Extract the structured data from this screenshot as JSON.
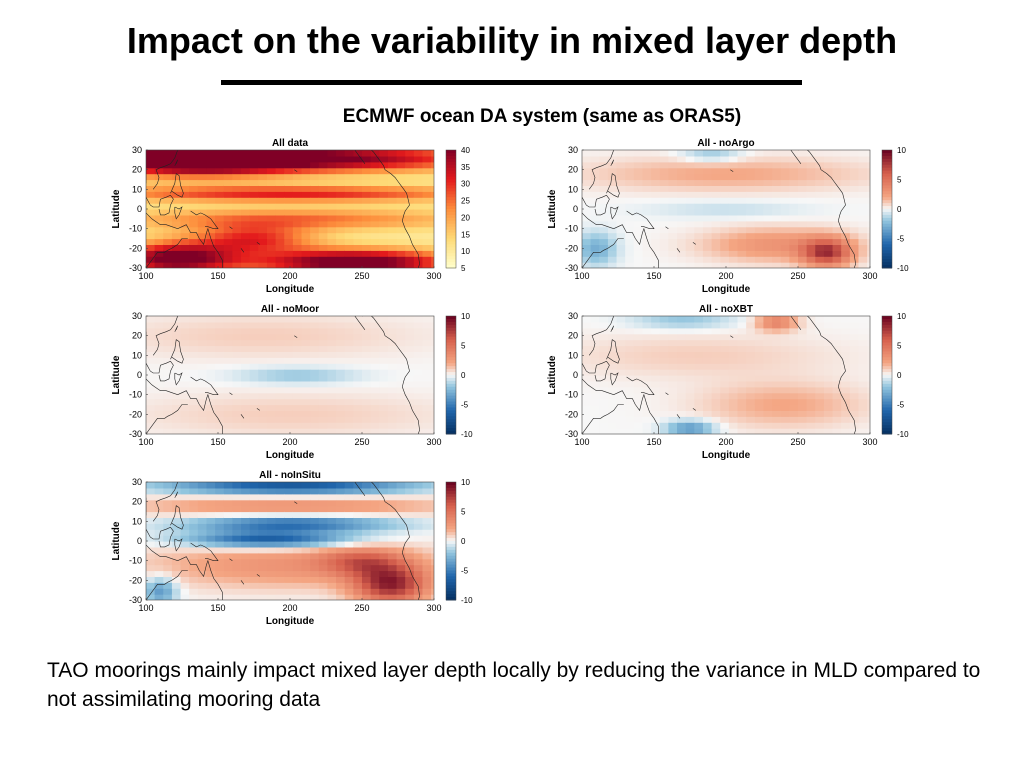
{
  "slide": {
    "title": "Impact on the variability in mixed layer depth",
    "subtitle": "ECMWF ocean DA system (same as ORAS5)",
    "caption": "TAO moorings mainly impact mixed layer depth locally by reducing the variance in MLD compared to not assimilating mooring data"
  },
  "chart_data": [
    {
      "type": "heatmap",
      "title": "All data",
      "xlabel": "Longitude",
      "ylabel": "Latitude",
      "xlim": [
        100,
        300
      ],
      "ylim": [
        -30,
        30
      ],
      "xticks": [
        100,
        150,
        200,
        250,
        300
      ],
      "yticks": [
        -30,
        -20,
        -10,
        0,
        10,
        20,
        30
      ],
      "colorbar": {
        "range": [
          5,
          40
        ],
        "ticks": [
          5,
          10,
          15,
          20,
          25,
          30,
          35,
          40
        ],
        "colormap": "yellow-orange-red"
      },
      "features": [
        {
          "lon": 130,
          "lat": 25,
          "value": 33,
          "sx": 50,
          "sy": 6
        },
        {
          "lon": 230,
          "lat": 26,
          "value": 30,
          "sx": 80,
          "sy": 5
        },
        {
          "lon": 200,
          "lat": 8,
          "value": 22,
          "sx": 100,
          "sy": 3
        },
        {
          "lon": 200,
          "lat": -5,
          "value": 16,
          "sx": 90,
          "sy": 4
        },
        {
          "lon": 120,
          "lat": -25,
          "value": 33,
          "sx": 30,
          "sy": 6
        },
        {
          "lon": 245,
          "lat": -27,
          "value": 36,
          "sx": 50,
          "sy": 5
        },
        {
          "lon": 175,
          "lat": -15,
          "value": 20,
          "sx": 30,
          "sy": 5
        }
      ]
    },
    {
      "type": "heatmap",
      "title": "All - noArgo",
      "xlabel": "Longitude",
      "ylabel": "Latitude",
      "xlim": [
        100,
        300
      ],
      "ylim": [
        -30,
        30
      ],
      "xticks": [
        100,
        150,
        200,
        250,
        300
      ],
      "yticks": [
        -30,
        -20,
        -10,
        0,
        10,
        20,
        30
      ],
      "colorbar": {
        "range": [
          -10,
          10
        ],
        "ticks": [
          -10,
          -5,
          0,
          5,
          10
        ],
        "colormap": "blue-white-red"
      },
      "features": [
        {
          "lon": 270,
          "lat": -22,
          "value": 7,
          "sx": 12,
          "sy": 5
        },
        {
          "lon": 235,
          "lat": -18,
          "value": 3,
          "sx": 35,
          "sy": 6
        },
        {
          "lon": 110,
          "lat": -20,
          "value": -3,
          "sx": 10,
          "sy": 6
        },
        {
          "lon": 200,
          "lat": 0,
          "value": -1,
          "sx": 40,
          "sy": 3
        },
        {
          "lon": 200,
          "lat": 18,
          "value": 2,
          "sx": 70,
          "sy": 6
        },
        {
          "lon": 190,
          "lat": 28,
          "value": -2,
          "sx": 15,
          "sy": 3
        }
      ]
    },
    {
      "type": "heatmap",
      "title": "All - noMoor",
      "xlabel": "Longitude",
      "ylabel": "Latitude",
      "xlim": [
        100,
        300
      ],
      "ylim": [
        -30,
        30
      ],
      "xticks": [
        100,
        150,
        200,
        250,
        300
      ],
      "yticks": [
        -30,
        -20,
        -10,
        0,
        10,
        20,
        30
      ],
      "colorbar": {
        "range": [
          -10,
          10
        ],
        "ticks": [
          -10,
          -5,
          0,
          5,
          10
        ],
        "colormap": "blue-white-red"
      },
      "features": [
        {
          "lon": 205,
          "lat": 0,
          "value": -2,
          "sx": 30,
          "sy": 3
        },
        {
          "lon": 180,
          "lat": 20,
          "value": 1,
          "sx": 80,
          "sy": 8
        },
        {
          "lon": 200,
          "lat": -20,
          "value": 1,
          "sx": 80,
          "sy": 8
        }
      ]
    },
    {
      "type": "heatmap",
      "title": "All - noXBT",
      "xlabel": "Longitude",
      "ylabel": "Latitude",
      "xlim": [
        100,
        300
      ],
      "ylim": [
        -30,
        30
      ],
      "xticks": [
        100,
        150,
        200,
        250,
        300
      ],
      "yticks": [
        -30,
        -20,
        -10,
        0,
        10,
        20,
        30
      ],
      "colorbar": {
        "range": [
          -10,
          10
        ],
        "ticks": [
          -10,
          -5,
          0,
          5,
          10
        ],
        "colormap": "blue-white-red"
      },
      "features": [
        {
          "lon": 170,
          "lat": 28,
          "value": -2,
          "sx": 25,
          "sy": 3
        },
        {
          "lon": 235,
          "lat": 27,
          "value": 4,
          "sx": 10,
          "sy": 3
        },
        {
          "lon": 175,
          "lat": -27,
          "value": -4,
          "sx": 12,
          "sy": 3
        },
        {
          "lon": 240,
          "lat": -15,
          "value": 2,
          "sx": 40,
          "sy": 8
        },
        {
          "lon": 180,
          "lat": 10,
          "value": 1,
          "sx": 70,
          "sy": 8
        }
      ]
    },
    {
      "type": "heatmap",
      "title": "All - noInSitu",
      "xlabel": "Longitude",
      "ylabel": "Latitude",
      "xlim": [
        100,
        300
      ],
      "ylim": [
        -30,
        30
      ],
      "xticks": [
        100,
        150,
        200,
        250,
        300
      ],
      "yticks": [
        -30,
        -20,
        -10,
        0,
        10,
        20,
        30
      ],
      "colorbar": {
        "range": [
          -10,
          10
        ],
        "ticks": [
          -10,
          -5,
          0,
          5,
          10
        ],
        "colormap": "blue-white-red"
      },
      "features": [
        {
          "lon": 200,
          "lat": 28,
          "value": -7,
          "sx": 60,
          "sy": 3
        },
        {
          "lon": 200,
          "lat": 9,
          "value": -6,
          "sx": 50,
          "sy": 3
        },
        {
          "lon": 185,
          "lat": 1,
          "value": -7,
          "sx": 40,
          "sy": 3
        },
        {
          "lon": 200,
          "lat": 18,
          "value": 3,
          "sx": 80,
          "sy": 4
        },
        {
          "lon": 270,
          "lat": -22,
          "value": 8,
          "sx": 18,
          "sy": 7
        },
        {
          "lon": 250,
          "lat": -10,
          "value": 4,
          "sx": 20,
          "sy": 5
        },
        {
          "lon": 200,
          "lat": -12,
          "value": 3,
          "sx": 70,
          "sy": 8
        },
        {
          "lon": 110,
          "lat": -25,
          "value": -4,
          "sx": 8,
          "sy": 5
        }
      ]
    }
  ]
}
